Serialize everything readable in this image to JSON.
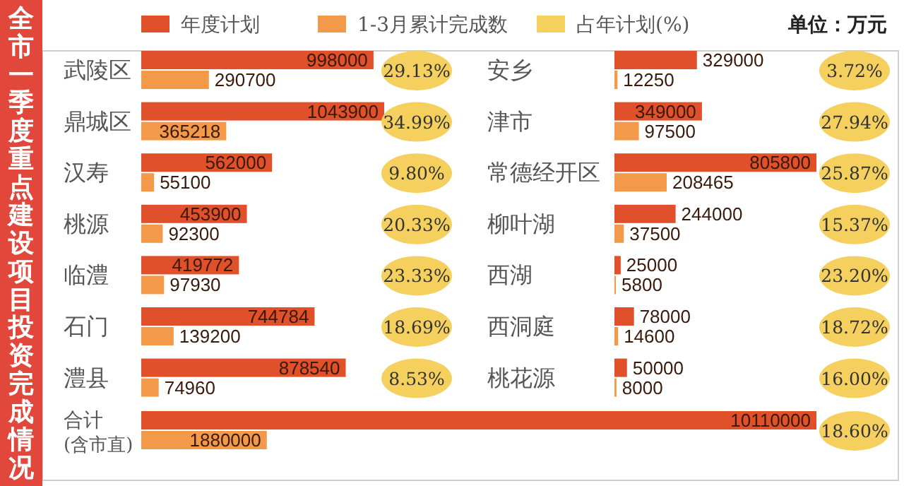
{
  "chart_data": [
    {
      "type": "bar",
      "orientation": "horizontal",
      "title": "全市一季度重点建设项目投资完成情况",
      "legend": "top",
      "data_labels": true,
      "annotations": [
        "单位：万元"
      ],
      "categories": [
        "武陵区",
        "鼎城区",
        "汉寿",
        "桃源",
        "临澧",
        "石门",
        "澧县"
      ],
      "series": [
        {
          "name": "年度计划",
          "color": "#e0502a",
          "values": [
            998000,
            1043900,
            562000,
            453900,
            419772,
            744784,
            878540
          ]
        },
        {
          "name": "1-3月累计完成数",
          "color": "#f39a4a",
          "values": [
            290700,
            365218,
            55100,
            92300,
            97930,
            139200,
            74960
          ]
        }
      ]
    },
    {
      "type": "other",
      "series": [
        {
          "name": "占年计划(%)",
          "color": "#f5d05e",
          "values": [
            29.13,
            34.99,
            9.8,
            20.33,
            23.33,
            18.69,
            8.53
          ],
          "value_labels": [
            "29.13%",
            "34.99%",
            "9.80%",
            "20.33%",
            "23.33%",
            "18.69%",
            "8.53%"
          ]
        }
      ]
    },
    {
      "type": "bar",
      "orientation": "horizontal",
      "data_labels": true,
      "categories": [
        "安乡",
        "津市",
        "常德经开区",
        "柳叶湖",
        "西湖",
        "西洞庭",
        "桃花源"
      ],
      "series": [
        {
          "color": "#e0502a",
          "values": [
            329000,
            349000,
            805800,
            244000,
            25000,
            78000,
            50000
          ]
        },
        {
          "color": "#f39a4a",
          "values": [
            12250,
            97500,
            208465,
            37500,
            5800,
            14600,
            8000
          ]
        }
      ]
    },
    {
      "type": "other",
      "series": [
        {
          "color": "#f5d05e",
          "values": [
            3.72,
            27.94,
            25.87,
            15.37,
            23.2,
            18.72,
            16.0
          ],
          "value_labels": [
            "3.72%",
            "27.94%",
            "25.87%",
            "15.37%",
            "23.20%",
            "18.72%",
            "16.00%"
          ]
        }
      ]
    },
    {
      "type": "bar",
      "orientation": "horizontal",
      "data_labels": true,
      "categories": [
        "合计\n(含市直)"
      ],
      "series": [
        {
          "color": "#e0502a",
          "values": [
            10110000
          ]
        },
        {
          "color": "#f39a4a",
          "values": [
            1880000
          ]
        }
      ]
    },
    {
      "type": "other",
      "series": [
        {
          "color": "#f5d05e",
          "values": [
            18.6
          ],
          "value_labels": [
            "18.60%"
          ]
        }
      ]
    }
  ]
}
